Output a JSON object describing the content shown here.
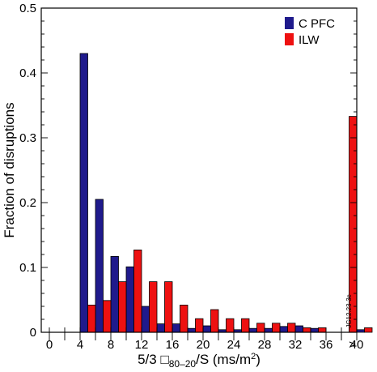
{
  "chart_data": {
    "type": "bar",
    "title": "",
    "xlabel_main": "5/3 ",
    "xlabel_glyph": "□",
    "xlabel_sub": "80–20",
    "xlabel_tail": "/S (ms/m",
    "xlabel_sup": "2",
    "xlabel_close": ")",
    "ylabel": "Fraction of disruptions",
    "ylim": [
      0,
      0.5
    ],
    "yticks": [
      "0",
      "0.1",
      "0.2",
      "0.3",
      "0.4",
      "0.5"
    ],
    "xticks": [
      "0",
      "4",
      "8",
      "12",
      "16",
      "20",
      "24",
      "28",
      "32",
      "36",
      "40",
      ">"
    ],
    "legend_position": "top-right",
    "side_note": "JG12.23-3c",
    "bin_width": 2,
    "series": [
      {
        "name": "C PFC",
        "color": "#1f1a8c",
        "bins": [
          4,
          6,
          8,
          10,
          12,
          14,
          16,
          18,
          20,
          22,
          24,
          26,
          28,
          30,
          32,
          34,
          36,
          38,
          40,
          ">"
        ],
        "values": [
          0.43,
          0.205,
          0.117,
          0.101,
          0.04,
          0.013,
          0.013,
          0.006,
          0.01,
          0.004,
          0.004,
          0.006,
          0.006,
          0.009,
          0.01,
          0.006,
          0.0,
          0.0,
          0.004,
          0.0
        ]
      },
      {
        "name": "ILW",
        "color": "#ee1111",
        "bins": [
          4,
          6,
          8,
          10,
          12,
          14,
          16,
          18,
          20,
          22,
          24,
          26,
          28,
          30,
          32,
          34,
          36,
          38,
          40,
          ">"
        ],
        "values": [
          0.042,
          0.049,
          0.078,
          0.127,
          0.078,
          0.078,
          0.042,
          0.021,
          0.035,
          0.021,
          0.021,
          0.014,
          0.014,
          0.014,
          0.007,
          0.007,
          0.0,
          0.014,
          0.007,
          0.333
        ]
      }
    ]
  }
}
